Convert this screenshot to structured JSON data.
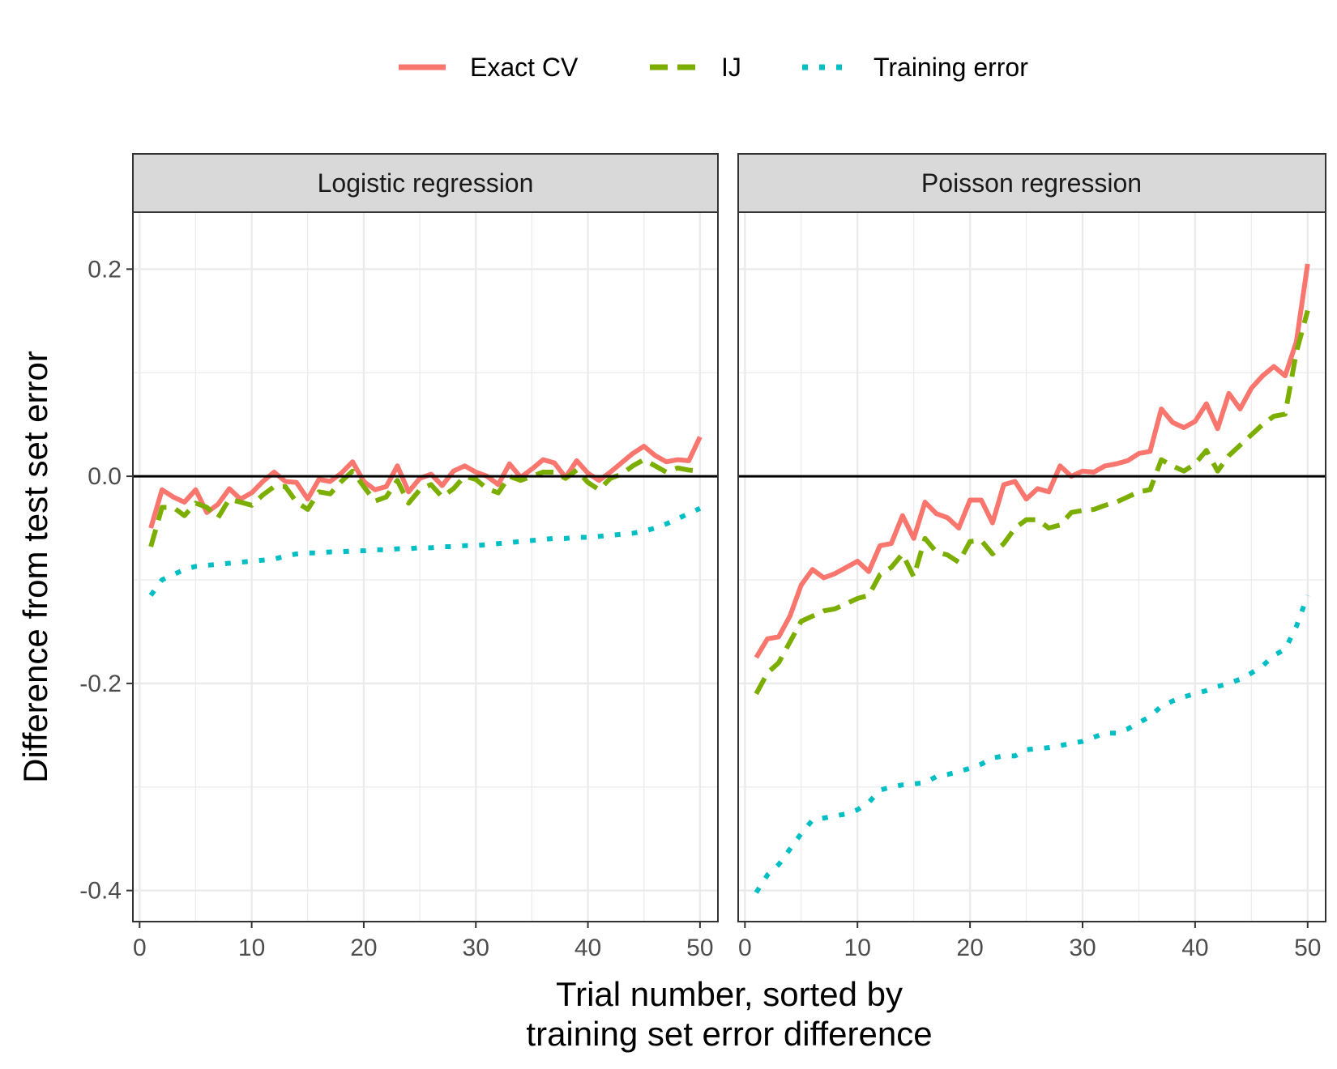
{
  "chart_data": {
    "type": "line",
    "xlabel": "Trial number, sorted by training set error difference",
    "xlabel_lines": [
      "Trial number, sorted by",
      "training set error difference"
    ],
    "ylabel": "Difference from test set error",
    "xlim": [
      -0.6,
      51.6
    ],
    "ylim": [
      -0.43,
      0.255
    ],
    "x_ticks": [
      0,
      10,
      20,
      30,
      40,
      50
    ],
    "x_tick_labels": [
      "0",
      "10",
      "20",
      "30",
      "40",
      "50"
    ],
    "y_ticks": [
      0.2,
      0.0,
      -0.2,
      -0.4
    ],
    "y_tick_labels": [
      "0.2",
      "0.0",
      "-0.2",
      "-0.4"
    ],
    "hline": 0,
    "legend_position": "top",
    "legend": [
      {
        "name": "Exact CV",
        "color": "#F8766D",
        "style": "solid"
      },
      {
        "name": "IJ",
        "color": "#7CAE00",
        "style": "dashed"
      },
      {
        "name": "Training error",
        "color": "#00BFC4",
        "style": "dotted"
      }
    ],
    "panels": [
      {
        "title": "Logistic regression",
        "x": [
          1,
          2,
          3,
          4,
          5,
          6,
          7,
          8,
          9,
          10,
          11,
          12,
          13,
          14,
          15,
          16,
          17,
          18,
          19,
          20,
          21,
          22,
          23,
          24,
          25,
          26,
          27,
          28,
          29,
          30,
          31,
          32,
          33,
          34,
          35,
          36,
          37,
          38,
          39,
          40,
          41,
          42,
          43,
          44,
          45,
          46,
          47,
          48,
          49,
          50
        ],
        "series": [
          {
            "name": "Exact CV",
            "values": [
              -0.05,
              -0.013,
              -0.02,
              -0.025,
              -0.013,
              -0.035,
              -0.027,
              -0.012,
              -0.022,
              -0.016,
              -0.005,
              0.004,
              -0.005,
              -0.006,
              -0.022,
              -0.003,
              -0.005,
              0.003,
              0.014,
              -0.005,
              -0.013,
              -0.01,
              0.01,
              -0.015,
              -0.002,
              0.002,
              -0.009,
              0.005,
              0.01,
              0.004,
              0.0,
              -0.008,
              0.012,
              -0.001,
              0.007,
              0.016,
              0.013,
              -0.001,
              0.015,
              0.003,
              -0.004,
              0.004,
              0.013,
              0.022,
              0.029,
              0.02,
              0.014,
              0.016,
              0.015,
              0.038
            ]
          },
          {
            "name": "IJ",
            "values": [
              -0.068,
              -0.03,
              -0.03,
              -0.038,
              -0.026,
              -0.03,
              -0.04,
              -0.022,
              -0.025,
              -0.028,
              -0.018,
              -0.01,
              -0.01,
              -0.025,
              -0.032,
              -0.015,
              -0.017,
              -0.005,
              0.005,
              -0.01,
              -0.024,
              -0.02,
              -0.004,
              -0.026,
              -0.013,
              -0.008,
              -0.02,
              -0.012,
              0.0,
              -0.003,
              -0.012,
              -0.016,
              0.0,
              -0.004,
              0.0,
              0.004,
              0.004,
              -0.002,
              0.006,
              -0.006,
              -0.013,
              -0.002,
              0.002,
              0.01,
              0.016,
              0.01,
              0.004,
              0.008,
              0.006,
              0.005
            ]
          },
          {
            "name": "Training error",
            "values": [
              -0.115,
              -0.1,
              -0.095,
              -0.09,
              -0.087,
              -0.086,
              -0.085,
              -0.084,
              -0.083,
              -0.082,
              -0.081,
              -0.08,
              -0.077,
              -0.075,
              -0.074,
              -0.074,
              -0.073,
              -0.073,
              -0.072,
              -0.072,
              -0.071,
              -0.071,
              -0.07,
              -0.07,
              -0.069,
              -0.069,
              -0.068,
              -0.068,
              -0.067,
              -0.067,
              -0.066,
              -0.065,
              -0.064,
              -0.063,
              -0.062,
              -0.061,
              -0.06,
              -0.06,
              -0.059,
              -0.059,
              -0.058,
              -0.057,
              -0.056,
              -0.055,
              -0.053,
              -0.05,
              -0.046,
              -0.041,
              -0.036,
              -0.031
            ]
          }
        ]
      },
      {
        "title": "Poisson regression",
        "x": [
          1,
          2,
          3,
          4,
          5,
          6,
          7,
          8,
          9,
          10,
          11,
          12,
          13,
          14,
          15,
          16,
          17,
          18,
          19,
          20,
          21,
          22,
          23,
          24,
          25,
          26,
          27,
          28,
          29,
          30,
          31,
          32,
          33,
          34,
          35,
          36,
          37,
          38,
          39,
          40,
          41,
          42,
          43,
          44,
          45,
          46,
          47,
          48,
          49,
          50
        ],
        "series": [
          {
            "name": "Exact CV",
            "values": [
              -0.175,
              -0.157,
              -0.155,
              -0.135,
              -0.105,
              -0.09,
              -0.098,
              -0.094,
              -0.088,
              -0.082,
              -0.092,
              -0.067,
              -0.065,
              -0.038,
              -0.06,
              -0.025,
              -0.036,
              -0.04,
              -0.05,
              -0.023,
              -0.023,
              -0.045,
              -0.008,
              -0.005,
              -0.022,
              -0.012,
              -0.015,
              0.01,
              0.0,
              0.005,
              0.004,
              0.01,
              0.012,
              0.015,
              0.022,
              0.024,
              0.065,
              0.052,
              0.047,
              0.053,
              0.07,
              0.046,
              0.08,
              0.065,
              0.085,
              0.097,
              0.106,
              0.097,
              0.13,
              0.205
            ]
          },
          {
            "name": "IJ",
            "values": [
              -0.21,
              -0.19,
              -0.18,
              -0.16,
              -0.14,
              -0.135,
              -0.13,
              -0.128,
              -0.123,
              -0.118,
              -0.115,
              -0.095,
              -0.088,
              -0.075,
              -0.097,
              -0.06,
              -0.073,
              -0.076,
              -0.083,
              -0.063,
              -0.062,
              -0.075,
              -0.065,
              -0.05,
              -0.042,
              -0.042,
              -0.05,
              -0.047,
              -0.035,
              -0.033,
              -0.032,
              -0.028,
              -0.025,
              -0.02,
              -0.015,
              -0.013,
              0.016,
              0.01,
              0.005,
              0.012,
              0.025,
              0.005,
              0.02,
              0.03,
              0.04,
              0.05,
              0.058,
              0.06,
              0.12,
              0.16
            ]
          },
          {
            "name": "Training error",
            "values": [
              -0.402,
              -0.385,
              -0.375,
              -0.36,
              -0.345,
              -0.332,
              -0.33,
              -0.328,
              -0.326,
              -0.322,
              -0.315,
              -0.303,
              -0.3,
              -0.298,
              -0.297,
              -0.296,
              -0.29,
              -0.288,
              -0.285,
              -0.282,
              -0.278,
              -0.272,
              -0.27,
              -0.27,
              -0.264,
              -0.263,
              -0.262,
              -0.26,
              -0.258,
              -0.256,
              -0.252,
              -0.248,
              -0.248,
              -0.244,
              -0.238,
              -0.232,
              -0.222,
              -0.217,
              -0.213,
              -0.21,
              -0.207,
              -0.203,
              -0.2,
              -0.196,
              -0.19,
              -0.183,
              -0.173,
              -0.167,
              -0.145,
              -0.115
            ]
          }
        ]
      }
    ]
  }
}
